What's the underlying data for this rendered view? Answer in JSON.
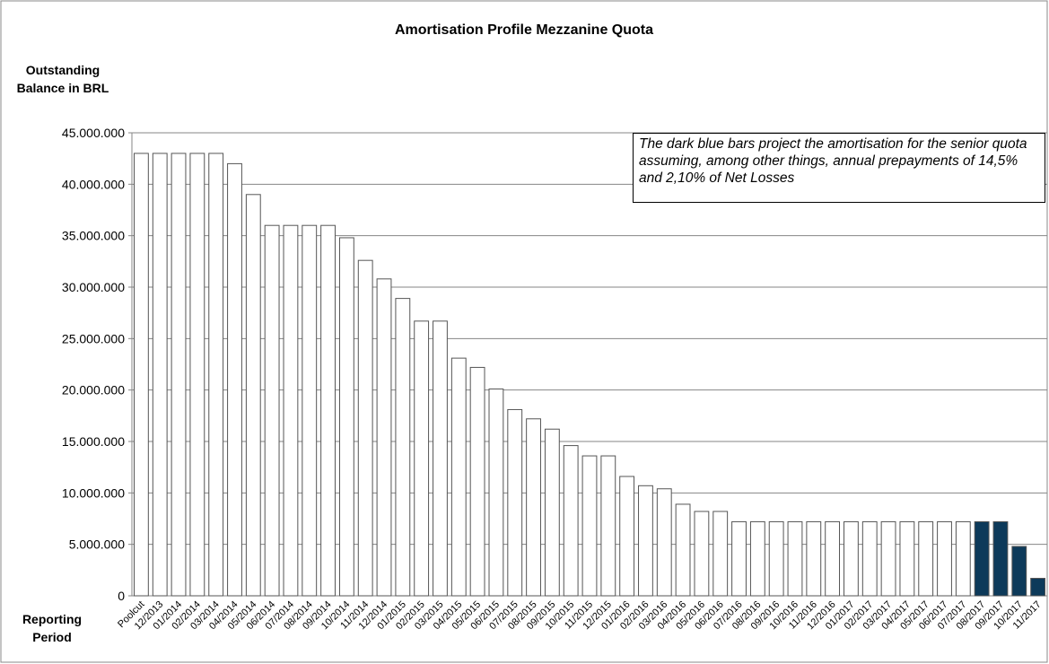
{
  "chart_data": {
    "type": "bar",
    "title": "Amortisation Profile Mezzanine Quota",
    "y_label": "Outstanding Balance in BRL",
    "x_label": "Reporting Period",
    "annotation": "The dark blue bars project the amortisation for the senior quota assuming, among other things, annual prepayments of 14,5% and 2,10% of Net Losses",
    "categories": [
      "Poolcut",
      "12/2013",
      "01/2014",
      "02/2014",
      "03/2014",
      "04/2014",
      "05/2014",
      "06/2014",
      "07/2014",
      "08/2014",
      "09/2014",
      "10/2014",
      "11/2014",
      "12/2014",
      "01/2015",
      "02/2015",
      "03/2015",
      "04/2015",
      "05/2015",
      "06/2015",
      "07/2015",
      "08/2015",
      "09/2015",
      "10/2015",
      "11/2015",
      "12/2015",
      "01/2016",
      "02/2016",
      "03/2016",
      "04/2016",
      "05/2016",
      "06/2016",
      "07/2016",
      "08/2016",
      "09/2016",
      "10/2016",
      "11/2016",
      "12/2016",
      "01/2017",
      "02/2017",
      "03/2017",
      "04/2017",
      "05/2017",
      "06/2017",
      "07/2017",
      "08/2017",
      "09/2017",
      "10/2017",
      "11/2017"
    ],
    "values": [
      43000000,
      43000000,
      43000000,
      43000000,
      43000000,
      42000000,
      39000000,
      36000000,
      36000000,
      36000000,
      36000000,
      34800000,
      32600000,
      30800000,
      28900000,
      26700000,
      26700000,
      23100000,
      22200000,
      20100000,
      18100000,
      17200000,
      16200000,
      14600000,
      13600000,
      13600000,
      11600000,
      10700000,
      10400000,
      8900000,
      8200000,
      8200000,
      7200000,
      7200000,
      7200000,
      7200000,
      7200000,
      7200000,
      7200000,
      7200000,
      7200000,
      7200000,
      7200000,
      7200000,
      7200000,
      7200000,
      7200000,
      4800000,
      1700000
    ],
    "bar_colors": [
      "#ffffff",
      "#ffffff",
      "#ffffff",
      "#ffffff",
      "#ffffff",
      "#ffffff",
      "#ffffff",
      "#ffffff",
      "#ffffff",
      "#ffffff",
      "#ffffff",
      "#ffffff",
      "#ffffff",
      "#ffffff",
      "#ffffff",
      "#ffffff",
      "#ffffff",
      "#ffffff",
      "#ffffff",
      "#ffffff",
      "#ffffff",
      "#ffffff",
      "#ffffff",
      "#ffffff",
      "#ffffff",
      "#ffffff",
      "#ffffff",
      "#ffffff",
      "#ffffff",
      "#ffffff",
      "#ffffff",
      "#ffffff",
      "#ffffff",
      "#ffffff",
      "#ffffff",
      "#ffffff",
      "#ffffff",
      "#ffffff",
      "#ffffff",
      "#ffffff",
      "#ffffff",
      "#ffffff",
      "#ffffff",
      "#ffffff",
      "#ffffff",
      "#0d3a5a",
      "#0d3a5a",
      "#0d3a5a",
      "#0d3a5a"
    ],
    "ylim": [
      0,
      45000000
    ],
    "yticks": [
      0,
      {
        "value": 5000000,
        "label": "5.000.000"
      },
      {
        "value": 10000000,
        "label": "10.000.000"
      },
      {
        "value": 15000000,
        "label": "15.000.000"
      },
      {
        "value": 20000000,
        "label": "20.000.000"
      },
      {
        "value": 25000000,
        "label": "25.000.000"
      },
      {
        "value": 30000000,
        "label": "30.000.000"
      },
      {
        "value": 35000000,
        "label": "35.000.000"
      },
      {
        "value": 40000000,
        "label": "40.000.000"
      },
      {
        "value": 45000000,
        "label": "45.000.000"
      }
    ],
    "grid": true
  }
}
